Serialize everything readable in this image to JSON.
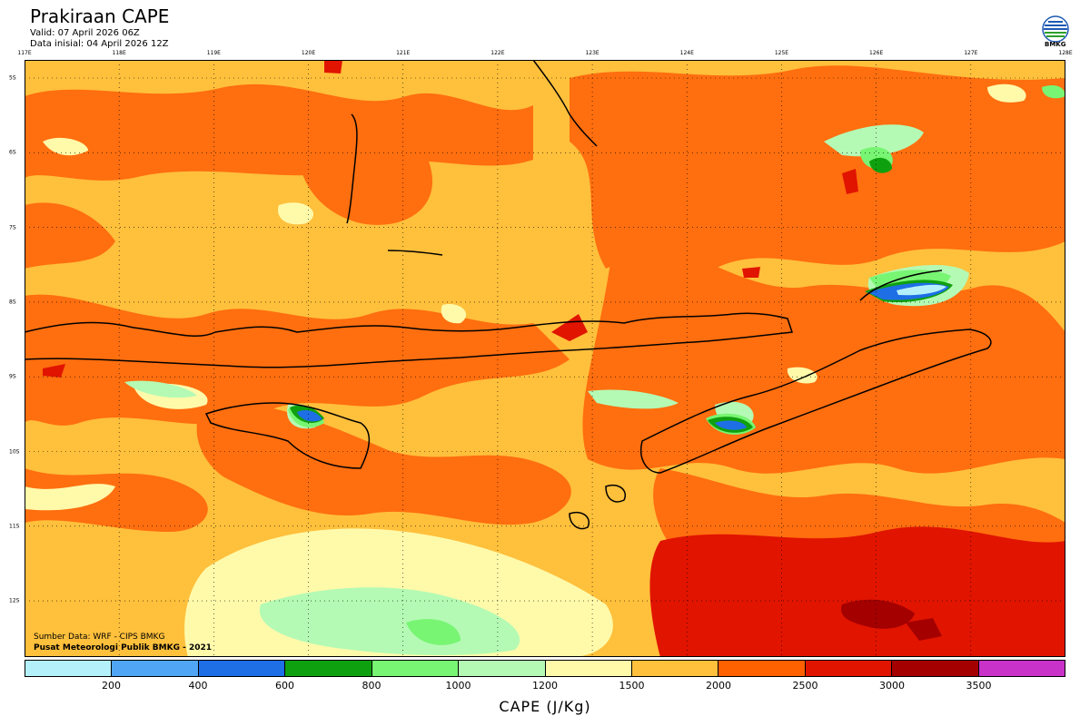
{
  "header": {
    "title": "Prakiraan CAPE",
    "valid": "Valid: 07 April 2026 06Z",
    "init": "Data inisial: 04 April 2026 12Z"
  },
  "logo": {
    "label": "BMKG",
    "icon": "bmkg-logo-icon"
  },
  "axes": {
    "lon_labels": [
      "117E",
      "118E",
      "119E",
      "120E",
      "121E",
      "122E",
      "123E",
      "124E",
      "125E",
      "126E",
      "127E",
      "128E"
    ],
    "lat_labels": [
      "5S",
      "6S",
      "7S",
      "8S",
      "9S",
      "10S",
      "11S",
      "12S"
    ]
  },
  "credits": {
    "source": "Sumber Data: WRF - CIPS BMKG",
    "center": "Pusat Meteorologi Publik BMKG - 2021"
  },
  "colorbar": {
    "title": "CAPE (J/Kg)",
    "ticks": [
      "200",
      "400",
      "600",
      "800",
      "1000",
      "1200",
      "1500",
      "2000",
      "2500",
      "3000",
      "3500"
    ],
    "colors": [
      "#b4f0fa",
      "#50a5f5",
      "#1e6ee6",
      "#0fa00f",
      "#78f573",
      "#b4fab4",
      "#fffaaa",
      "#ffc03c",
      "#ff6000",
      "#e11400",
      "#a50000",
      "#c832c8"
    ]
  },
  "map_colors": {
    "base": "#ffc03c",
    "orange": "#ff6e0f",
    "red": "#e11400",
    "dark_red": "#a50000",
    "light_yellow": "#fffaaa",
    "light_green": "#b4fab4",
    "green": "#78f573",
    "dark_green": "#0fa00f",
    "blue": "#1e6ee6",
    "light_blue": "#b4f0fa",
    "mid_blue": "#50a5f5"
  }
}
